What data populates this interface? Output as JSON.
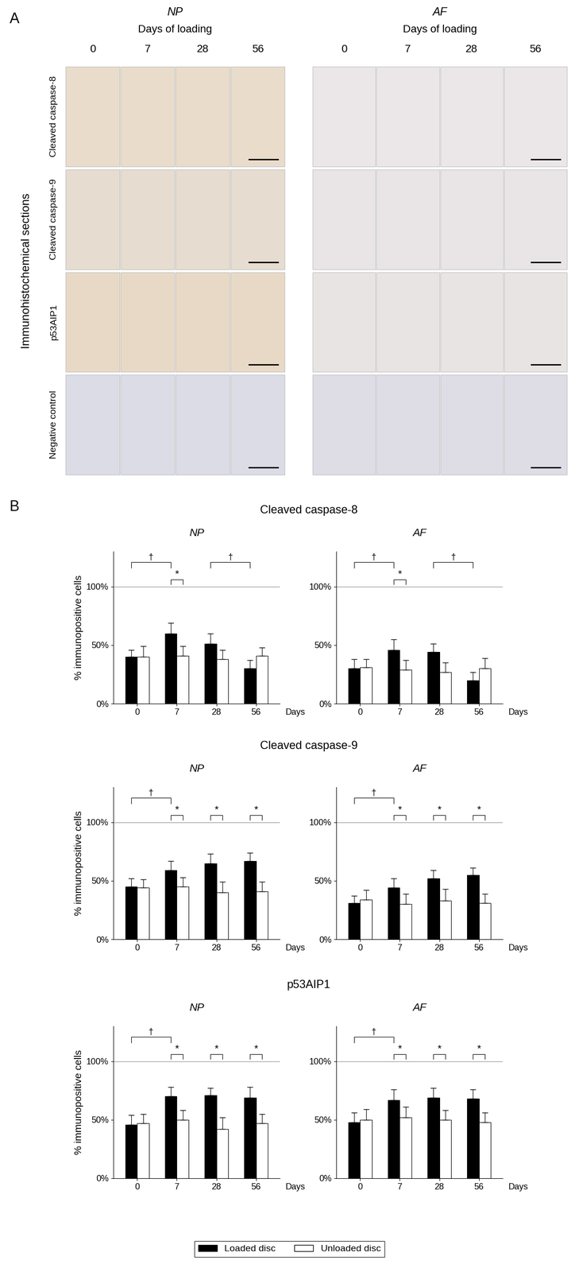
{
  "panel_a": {
    "label": "A",
    "side_label": "Immunohistochemical sections",
    "heading": "Days of loading",
    "tissues": [
      "NP",
      "AF"
    ],
    "days": [
      "0",
      "7",
      "28",
      "56"
    ],
    "rows": [
      "Cleaved caspase-8",
      "Cleaved caspase-9",
      "p53AIP1",
      "Negative control"
    ]
  },
  "panel_b": {
    "label": "B",
    "groups": [
      "Cleaved caspase-8",
      "Cleaved caspase-9",
      "p53AIP1"
    ],
    "legend": "lower center"
  },
  "chart_data": [
    {
      "type": "bar",
      "title": "NP",
      "ylabel": "% immunopositive cells",
      "xlabel": "Days",
      "categories": [
        "0",
        "7",
        "28",
        "56"
      ],
      "ylim": [
        0,
        130
      ],
      "yticks": [
        {
          "value": 0,
          "label": "0%"
        },
        {
          "value": 50,
          "label": "50%"
        },
        {
          "value": 100,
          "label": "100%"
        }
      ],
      "reference_line": 100,
      "grid": false,
      "series": [
        {
          "name": "Loaded disc",
          "color": "#000000",
          "values": [
            40,
            60,
            51,
            30
          ],
          "errors": [
            6,
            9,
            9,
            7
          ]
        },
        {
          "name": "Unloaded disc",
          "color": "#ffffff",
          "values": [
            40,
            41,
            38,
            41
          ],
          "errors": [
            9,
            8,
            8,
            7
          ]
        }
      ],
      "annotations": [
        {
          "text": "†",
          "categories": [
            "0",
            "7"
          ]
        },
        {
          "text": "*",
          "categories": [
            "7"
          ]
        },
        {
          "text": "†",
          "categories": [
            "28",
            "56"
          ]
        }
      ]
    },
    {
      "type": "bar",
      "title": "AF",
      "xlabel": "Days",
      "categories": [
        "0",
        "7",
        "28",
        "56"
      ],
      "ylim": [
        0,
        130
      ],
      "yticks": [
        {
          "value": 0,
          "label": "0%"
        },
        {
          "value": 50,
          "label": "50%"
        },
        {
          "value": 100,
          "label": "100%"
        }
      ],
      "reference_line": 100,
      "grid": false,
      "series": [
        {
          "name": "Loaded disc",
          "color": "#000000",
          "values": [
            30,
            46,
            44,
            20
          ],
          "errors": [
            8,
            9,
            7,
            7
          ]
        },
        {
          "name": "Unloaded disc",
          "color": "#ffffff",
          "values": [
            31,
            29,
            27,
            30
          ],
          "errors": [
            7,
            8,
            8,
            9
          ]
        }
      ],
      "annotations": [
        {
          "text": "†",
          "categories": [
            "0",
            "7"
          ]
        },
        {
          "text": "*",
          "categories": [
            "7"
          ]
        },
        {
          "text": "†",
          "categories": [
            "28",
            "56"
          ]
        }
      ]
    },
    {
      "type": "bar",
      "title": "NP",
      "ylabel": "% immunopositive cells",
      "xlabel": "Days",
      "categories": [
        "0",
        "7",
        "28",
        "56"
      ],
      "ylim": [
        0,
        130
      ],
      "yticks": [
        {
          "value": 0,
          "label": "0%"
        },
        {
          "value": 50,
          "label": "50%"
        },
        {
          "value": 100,
          "label": "100%"
        }
      ],
      "reference_line": 100,
      "grid": false,
      "series": [
        {
          "name": "Loaded disc",
          "color": "#000000",
          "values": [
            45,
            59,
            65,
            67
          ],
          "errors": [
            7,
            8,
            8,
            7
          ]
        },
        {
          "name": "Unloaded disc",
          "color": "#ffffff",
          "values": [
            44,
            45,
            40,
            41
          ],
          "errors": [
            7,
            8,
            9,
            8
          ]
        }
      ],
      "annotations": [
        {
          "text": "†",
          "categories": [
            "0",
            "7"
          ]
        },
        {
          "text": "*",
          "categories": [
            "7"
          ]
        },
        {
          "text": "*",
          "categories": [
            "28"
          ]
        },
        {
          "text": "*",
          "categories": [
            "56"
          ]
        }
      ]
    },
    {
      "type": "bar",
      "title": "AF",
      "xlabel": "Days",
      "categories": [
        "0",
        "7",
        "28",
        "56"
      ],
      "ylim": [
        0,
        130
      ],
      "yticks": [
        {
          "value": 0,
          "label": "0%"
        },
        {
          "value": 50,
          "label": "50%"
        },
        {
          "value": 100,
          "label": "100%"
        }
      ],
      "reference_line": 100,
      "grid": false,
      "series": [
        {
          "name": "Loaded disc",
          "color": "#000000",
          "values": [
            31,
            44,
            52,
            55
          ],
          "errors": [
            6,
            8,
            7,
            6
          ]
        },
        {
          "name": "Unloaded disc",
          "color": "#ffffff",
          "values": [
            34,
            30,
            33,
            31
          ],
          "errors": [
            8,
            9,
            10,
            8
          ]
        }
      ],
      "annotations": [
        {
          "text": "†",
          "categories": [
            "0",
            "7"
          ]
        },
        {
          "text": "*",
          "categories": [
            "7"
          ]
        },
        {
          "text": "*",
          "categories": [
            "28"
          ]
        },
        {
          "text": "*",
          "categories": [
            "56"
          ]
        }
      ]
    },
    {
      "type": "bar",
      "title": "NP",
      "ylabel": "% immunopositive cells",
      "xlabel": "Days",
      "categories": [
        "0",
        "7",
        "28",
        "56"
      ],
      "ylim": [
        0,
        130
      ],
      "yticks": [
        {
          "value": 0,
          "label": "0%"
        },
        {
          "value": 50,
          "label": "50%"
        },
        {
          "value": 100,
          "label": "100%"
        }
      ],
      "reference_line": 100,
      "grid": false,
      "series": [
        {
          "name": "Loaded disc",
          "color": "#000000",
          "values": [
            46,
            70,
            71,
            69
          ],
          "errors": [
            8,
            8,
            6,
            9
          ]
        },
        {
          "name": "Unloaded disc",
          "color": "#ffffff",
          "values": [
            47,
            50,
            42,
            47
          ],
          "errors": [
            8,
            8,
            10,
            8
          ]
        }
      ],
      "annotations": [
        {
          "text": "†",
          "categories": [
            "0",
            "7"
          ]
        },
        {
          "text": "*",
          "categories": [
            "7"
          ]
        },
        {
          "text": "*",
          "categories": [
            "28"
          ]
        },
        {
          "text": "*",
          "categories": [
            "56"
          ]
        }
      ]
    },
    {
      "type": "bar",
      "title": "AF",
      "xlabel": "Days",
      "categories": [
        "0",
        "7",
        "28",
        "56"
      ],
      "ylim": [
        0,
        130
      ],
      "yticks": [
        {
          "value": 0,
          "label": "0%"
        },
        {
          "value": 50,
          "label": "50%"
        },
        {
          "value": 100,
          "label": "100%"
        }
      ],
      "reference_line": 100,
      "grid": false,
      "series": [
        {
          "name": "Loaded disc",
          "color": "#000000",
          "values": [
            48,
            67,
            69,
            68
          ],
          "errors": [
            8,
            9,
            8,
            8
          ]
        },
        {
          "name": "Unloaded disc",
          "color": "#ffffff",
          "values": [
            50,
            52,
            50,
            48
          ],
          "errors": [
            9,
            9,
            8,
            8
          ]
        }
      ],
      "annotations": [
        {
          "text": "†",
          "categories": [
            "0",
            "7"
          ]
        },
        {
          "text": "*",
          "categories": [
            "7"
          ]
        },
        {
          "text": "*",
          "categories": [
            "28"
          ]
        },
        {
          "text": "*",
          "categories": [
            "56"
          ]
        }
      ]
    }
  ]
}
